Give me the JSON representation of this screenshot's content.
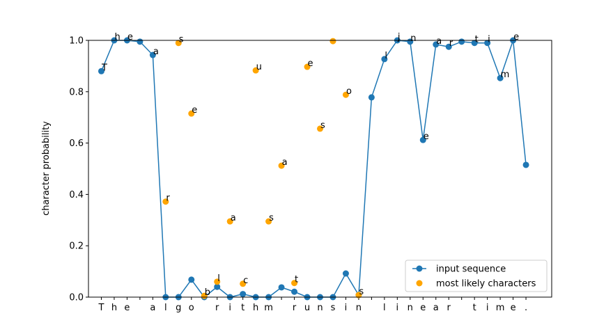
{
  "chart_data": {
    "type": "line",
    "ylabel": "character probability",
    "categories": [
      "T",
      "h",
      "e",
      " ",
      "a",
      "l",
      "g",
      "o",
      " ",
      "r",
      "i",
      "t",
      "h",
      "m",
      " ",
      "r",
      "u",
      "n",
      "s",
      "i",
      "n",
      " ",
      "l",
      "i",
      "n",
      "e",
      "a",
      "r",
      " ",
      "t",
      "i",
      "m",
      "e",
      "."
    ],
    "series": [
      {
        "name": "input sequence",
        "color": "#1f77b4",
        "style": "line-marker",
        "values": [
          0.88,
          1.0,
          1.0,
          0.995,
          0.943,
          0.0,
          0.0,
          0.068,
          0.0,
          0.04,
          0.0,
          0.012,
          0.0,
          0.0,
          0.038,
          0.021,
          0.0,
          0.0,
          0.0,
          0.092,
          0.008,
          0.778,
          0.927,
          1.0,
          0.995,
          0.612,
          0.984,
          0.975,
          0.995,
          0.99,
          0.99,
          0.853,
          1.0,
          0.515
        ],
        "point_labels": [
          "T",
          "h",
          "e",
          null,
          "a",
          null,
          null,
          null,
          null,
          null,
          null,
          null,
          null,
          null,
          null,
          null,
          null,
          null,
          null,
          null,
          null,
          null,
          "l",
          "j",
          "n",
          "e",
          "a",
          "r",
          null,
          "t",
          "i",
          "m",
          "e",
          null
        ]
      },
      {
        "name": "most likely characters",
        "color": "orange",
        "style": "scatter",
        "values": [
          null,
          null,
          null,
          null,
          null,
          0.372,
          0.99,
          0.715,
          0.005,
          0.06,
          0.295,
          0.052,
          0.883,
          0.295,
          0.512,
          0.055,
          0.897,
          0.656,
          0.997,
          0.788,
          0.008,
          null,
          null,
          null,
          null,
          null,
          null,
          null,
          null,
          null,
          null,
          null,
          null,
          null
        ],
        "point_labels": [
          null,
          null,
          null,
          null,
          null,
          "r",
          "s",
          "e",
          "b",
          "l",
          "a",
          "c",
          "u",
          "s",
          "a",
          "t",
          "e",
          "s",
          null,
          "o",
          "s",
          null,
          null,
          null,
          null,
          null,
          null,
          null,
          null,
          null,
          null,
          null,
          null,
          null
        ]
      }
    ],
    "xlim": [
      -1,
      35
    ],
    "ylim": [
      0,
      1
    ],
    "yticks": [
      {
        "value": 0,
        "label": "0.0"
      },
      {
        "value": 0.2,
        "label": "0.2"
      },
      {
        "value": 0.4,
        "label": "0.4"
      },
      {
        "value": 0.6,
        "label": "0.6"
      },
      {
        "value": 0.8,
        "label": "0.8"
      },
      {
        "value": 1,
        "label": "1.0"
      }
    ],
    "legend": "lower right",
    "grid": false
  }
}
